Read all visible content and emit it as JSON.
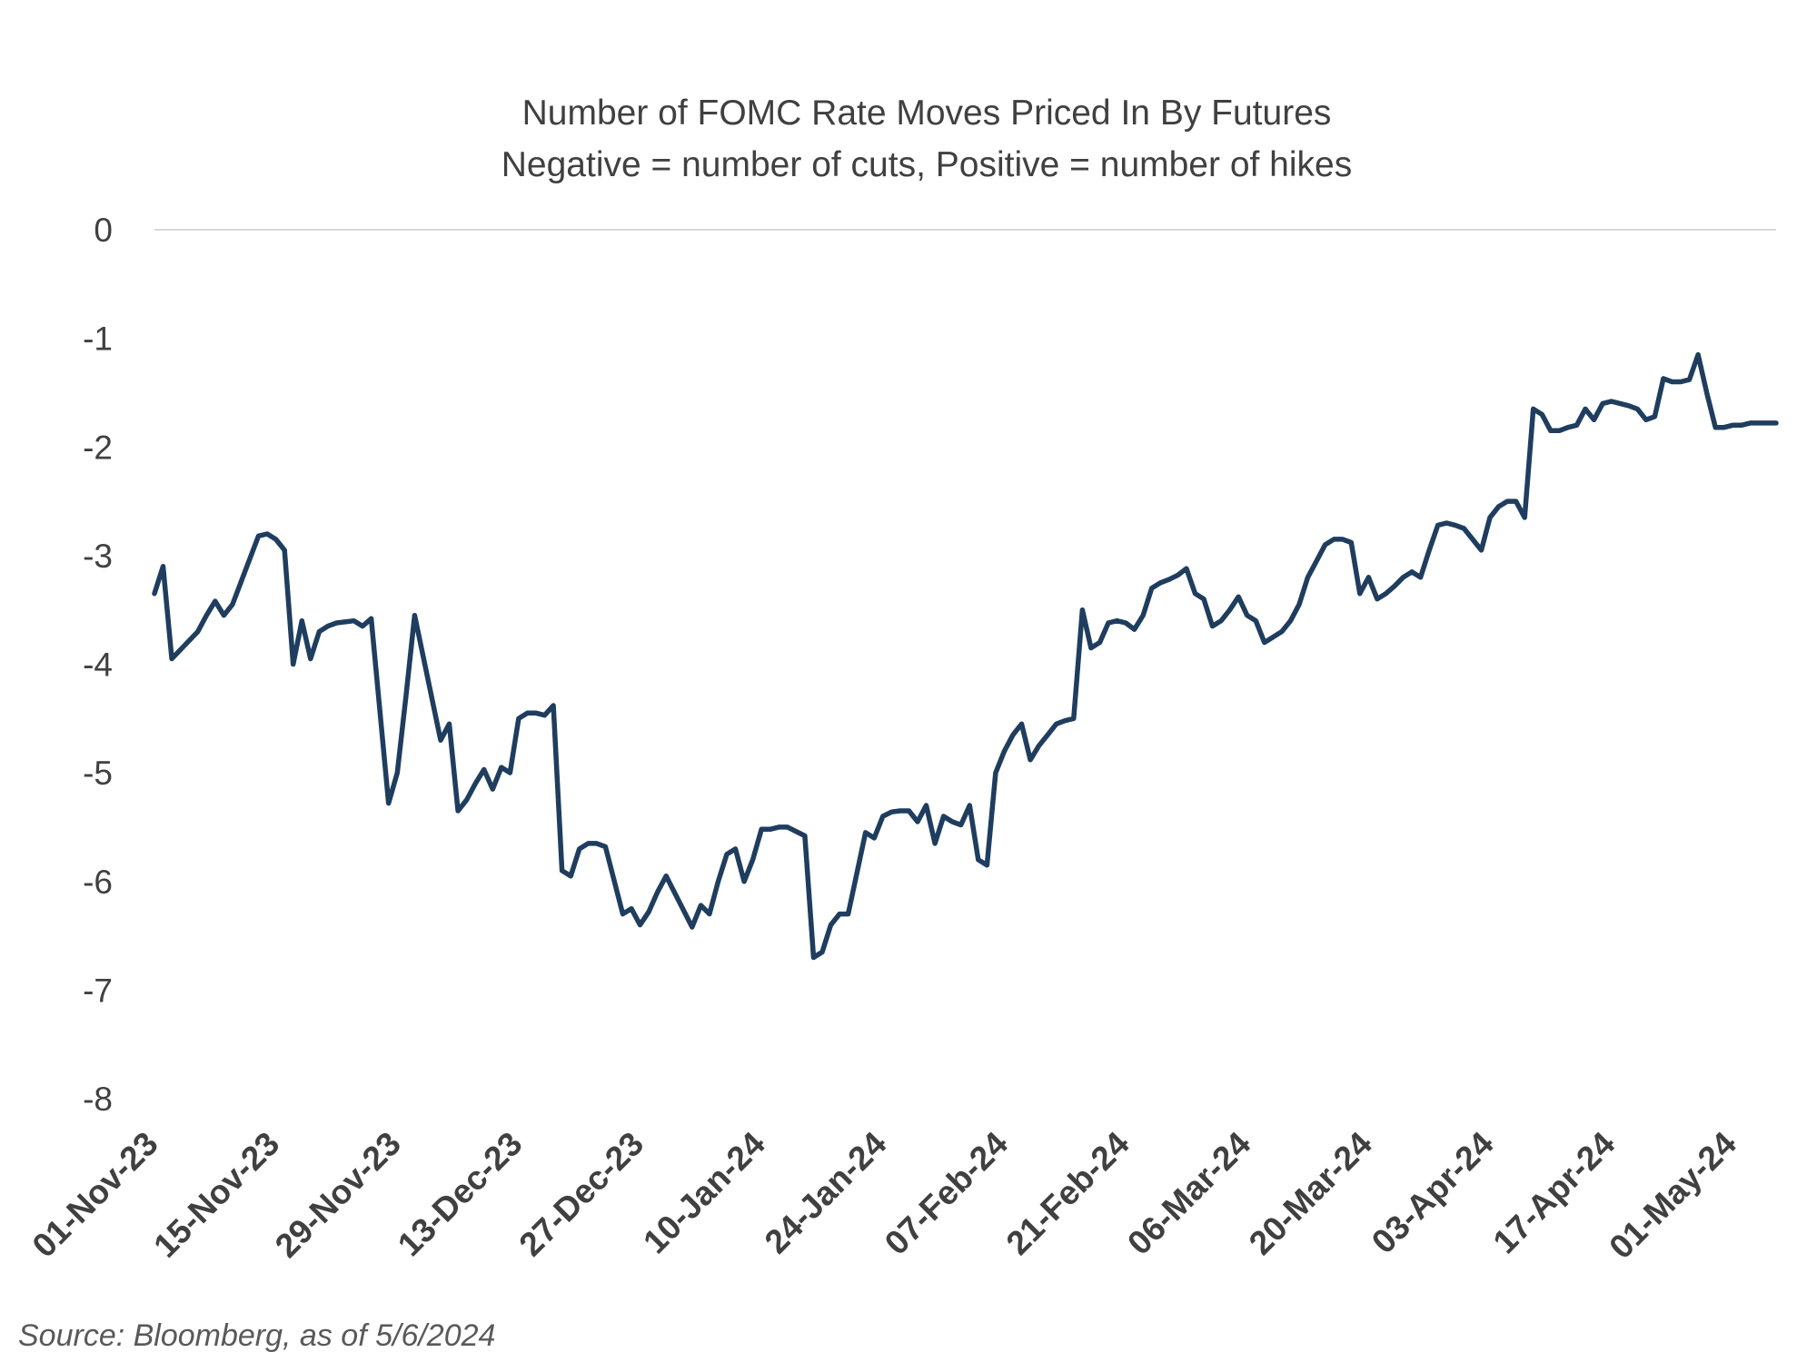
{
  "chart_data": {
    "type": "line",
    "title": "Number of FOMC Rate Moves Priced In By Futures",
    "subtitle": "Negative = number of cuts, Positive = number of hikes",
    "xlabel": "",
    "ylabel": "",
    "ylim": [
      -8,
      0
    ],
    "yticks": [
      "0",
      "-1",
      "-2",
      "-3",
      "-4",
      "-5",
      "-6",
      "-7",
      "-8"
    ],
    "xticks": [
      "01-Nov-23",
      "15-Nov-23",
      "29-Nov-23",
      "13-Dec-23",
      "27-Dec-23",
      "10-Jan-24",
      "24-Jan-24",
      "07-Feb-24",
      "21-Feb-24",
      "06-Mar-24",
      "20-Mar-24",
      "03-Apr-24",
      "17-Apr-24",
      "01-May-24"
    ],
    "xlim": [
      "2023-11-01",
      "2024-05-06"
    ],
    "grid": "horizontal-at-zero",
    "line_color": "#1f3d5e",
    "series": [
      {
        "values": [
          [
            "2023-11-01",
            -3.35
          ],
          [
            "2023-11-02",
            -3.1
          ],
          [
            "2023-11-03",
            -3.95
          ],
          [
            "2023-11-06",
            -3.7
          ],
          [
            "2023-11-07",
            -3.55
          ],
          [
            "2023-11-08",
            -3.42
          ],
          [
            "2023-11-09",
            -3.55
          ],
          [
            "2023-11-10",
            -3.45
          ],
          [
            "2023-11-13",
            -2.82
          ],
          [
            "2023-11-14",
            -2.8
          ],
          [
            "2023-11-15",
            -2.85
          ],
          [
            "2023-11-16",
            -2.95
          ],
          [
            "2023-11-17",
            -4.0
          ],
          [
            "2023-11-18",
            -3.6
          ],
          [
            "2023-11-19",
            -3.95
          ],
          [
            "2023-11-20",
            -3.7
          ],
          [
            "2023-11-21",
            -3.65
          ],
          [
            "2023-11-22",
            -3.62
          ],
          [
            "2023-11-24",
            -3.6
          ],
          [
            "2023-11-25",
            -3.65
          ],
          [
            "2023-11-26",
            -3.58
          ],
          [
            "2023-11-28",
            -5.28
          ],
          [
            "2023-11-29",
            -5.0
          ],
          [
            "2023-11-30",
            -4.3
          ],
          [
            "2023-12-01",
            -3.55
          ],
          [
            "2023-12-04",
            -4.7
          ],
          [
            "2023-12-05",
            -4.55
          ],
          [
            "2023-12-06",
            -5.35
          ],
          [
            "2023-12-07",
            -5.25
          ],
          [
            "2023-12-08",
            -5.1
          ],
          [
            "2023-12-09",
            -4.97
          ],
          [
            "2023-12-10",
            -5.15
          ],
          [
            "2023-12-11",
            -4.95
          ],
          [
            "2023-12-12",
            -5.0
          ],
          [
            "2023-12-13",
            -4.5
          ],
          [
            "2023-12-14",
            -4.45
          ],
          [
            "2023-12-15",
            -4.45
          ],
          [
            "2023-12-16",
            -4.47
          ],
          [
            "2023-12-17",
            -4.38
          ],
          [
            "2023-12-18",
            -5.9
          ],
          [
            "2023-12-19",
            -5.95
          ],
          [
            "2023-12-20",
            -5.7
          ],
          [
            "2023-12-21",
            -5.65
          ],
          [
            "2023-12-22",
            -5.65
          ],
          [
            "2023-12-23",
            -5.68
          ],
          [
            "2023-12-25",
            -6.3
          ],
          [
            "2023-12-26",
            -6.25
          ],
          [
            "2023-12-27",
            -6.4
          ],
          [
            "2023-12-28",
            -6.28
          ],
          [
            "2023-12-29",
            -6.1
          ],
          [
            "2023-12-30",
            -5.95
          ],
          [
            "2024-01-02",
            -6.42
          ],
          [
            "2024-01-03",
            -6.22
          ],
          [
            "2024-01-04",
            -6.3
          ],
          [
            "2024-01-05",
            -6.0
          ],
          [
            "2024-01-06",
            -5.75
          ],
          [
            "2024-01-07",
            -5.7
          ],
          [
            "2024-01-08",
            -6.0
          ],
          [
            "2024-01-09",
            -5.8
          ],
          [
            "2024-01-10",
            -5.52
          ],
          [
            "2024-01-11",
            -5.52
          ],
          [
            "2024-01-12",
            -5.5
          ],
          [
            "2024-01-13",
            -5.5
          ],
          [
            "2024-01-15",
            -5.58
          ],
          [
            "2024-01-16",
            -6.7
          ],
          [
            "2024-01-17",
            -6.65
          ],
          [
            "2024-01-18",
            -6.4
          ],
          [
            "2024-01-19",
            -6.3
          ],
          [
            "2024-01-20",
            -6.3
          ],
          [
            "2024-01-22",
            -5.55
          ],
          [
            "2024-01-23",
            -5.6
          ],
          [
            "2024-01-24",
            -5.4
          ],
          [
            "2024-01-25",
            -5.36
          ],
          [
            "2024-01-26",
            -5.35
          ],
          [
            "2024-01-27",
            -5.35
          ],
          [
            "2024-01-28",
            -5.45
          ],
          [
            "2024-01-29",
            -5.3
          ],
          [
            "2024-01-30",
            -5.65
          ],
          [
            "2024-01-31",
            -5.4
          ],
          [
            "2024-02-01",
            -5.45
          ],
          [
            "2024-02-02",
            -5.48
          ],
          [
            "2024-02-03",
            -5.3
          ],
          [
            "2024-02-04",
            -5.8
          ],
          [
            "2024-02-05",
            -5.85
          ],
          [
            "2024-02-06",
            -5.0
          ],
          [
            "2024-02-07",
            -4.8
          ],
          [
            "2024-02-08",
            -4.65
          ],
          [
            "2024-02-09",
            -4.55
          ],
          [
            "2024-02-10",
            -4.88
          ],
          [
            "2024-02-11",
            -4.75
          ],
          [
            "2024-02-12",
            -4.65
          ],
          [
            "2024-02-13",
            -4.55
          ],
          [
            "2024-02-14",
            -4.52
          ],
          [
            "2024-02-15",
            -4.5
          ],
          [
            "2024-02-16",
            -3.5
          ],
          [
            "2024-02-17",
            -3.85
          ],
          [
            "2024-02-18",
            -3.8
          ],
          [
            "2024-02-19",
            -3.62
          ],
          [
            "2024-02-20",
            -3.6
          ],
          [
            "2024-02-21",
            -3.62
          ],
          [
            "2024-02-22",
            -3.68
          ],
          [
            "2024-02-23",
            -3.55
          ],
          [
            "2024-02-24",
            -3.3
          ],
          [
            "2024-02-25",
            -3.25
          ],
          [
            "2024-02-26",
            -3.22
          ],
          [
            "2024-02-27",
            -3.18
          ],
          [
            "2024-02-28",
            -3.12
          ],
          [
            "2024-02-29",
            -3.35
          ],
          [
            "2024-03-01",
            -3.4
          ],
          [
            "2024-03-02",
            -3.65
          ],
          [
            "2024-03-03",
            -3.6
          ],
          [
            "2024-03-04",
            -3.5
          ],
          [
            "2024-03-05",
            -3.38
          ],
          [
            "2024-03-06",
            -3.55
          ],
          [
            "2024-03-07",
            -3.6
          ],
          [
            "2024-03-08",
            -3.8
          ],
          [
            "2024-03-09",
            -3.75
          ],
          [
            "2024-03-10",
            -3.7
          ],
          [
            "2024-03-11",
            -3.6
          ],
          [
            "2024-03-12",
            -3.45
          ],
          [
            "2024-03-13",
            -3.2
          ],
          [
            "2024-03-14",
            -3.05
          ],
          [
            "2024-03-15",
            -2.9
          ],
          [
            "2024-03-16",
            -2.85
          ],
          [
            "2024-03-17",
            -2.85
          ],
          [
            "2024-03-18",
            -2.88
          ],
          [
            "2024-03-19",
            -3.35
          ],
          [
            "2024-03-20",
            -3.2
          ],
          [
            "2024-03-21",
            -3.4
          ],
          [
            "2024-03-22",
            -3.35
          ],
          [
            "2024-03-23",
            -3.28
          ],
          [
            "2024-03-24",
            -3.2
          ],
          [
            "2024-03-25",
            -3.15
          ],
          [
            "2024-03-26",
            -3.2
          ],
          [
            "2024-03-27",
            -2.95
          ],
          [
            "2024-03-28",
            -2.72
          ],
          [
            "2024-03-29",
            -2.7
          ],
          [
            "2024-03-30",
            -2.72
          ],
          [
            "2024-03-31",
            -2.75
          ],
          [
            "2024-04-01",
            -2.85
          ],
          [
            "2024-04-02",
            -2.95
          ],
          [
            "2024-04-03",
            -2.65
          ],
          [
            "2024-04-04",
            -2.55
          ],
          [
            "2024-04-05",
            -2.5
          ],
          [
            "2024-04-06",
            -2.5
          ],
          [
            "2024-04-07",
            -2.65
          ],
          [
            "2024-04-08",
            -1.65
          ],
          [
            "2024-04-09",
            -1.7
          ],
          [
            "2024-04-10",
            -1.85
          ],
          [
            "2024-04-11",
            -1.85
          ],
          [
            "2024-04-12",
            -1.82
          ],
          [
            "2024-04-13",
            -1.8
          ],
          [
            "2024-04-14",
            -1.65
          ],
          [
            "2024-04-15",
            -1.75
          ],
          [
            "2024-04-16",
            -1.6
          ],
          [
            "2024-04-17",
            -1.58
          ],
          [
            "2024-04-18",
            -1.6
          ],
          [
            "2024-04-19",
            -1.62
          ],
          [
            "2024-04-20",
            -1.65
          ],
          [
            "2024-04-21",
            -1.75
          ],
          [
            "2024-04-22",
            -1.72
          ],
          [
            "2024-04-23",
            -1.37
          ],
          [
            "2024-04-24",
            -1.4
          ],
          [
            "2024-04-25",
            -1.4
          ],
          [
            "2024-04-26",
            -1.38
          ],
          [
            "2024-04-27",
            -1.15
          ],
          [
            "2024-04-28",
            -1.5
          ],
          [
            "2024-04-29",
            -1.82
          ],
          [
            "2024-04-30",
            -1.82
          ],
          [
            "2024-05-01",
            -1.8
          ],
          [
            "2024-05-02",
            -1.8
          ],
          [
            "2024-05-03",
            -1.78
          ],
          [
            "2024-05-06",
            -1.78
          ]
        ]
      }
    ]
  },
  "source_note": "Source: Bloomberg, as of 5/6/2024"
}
